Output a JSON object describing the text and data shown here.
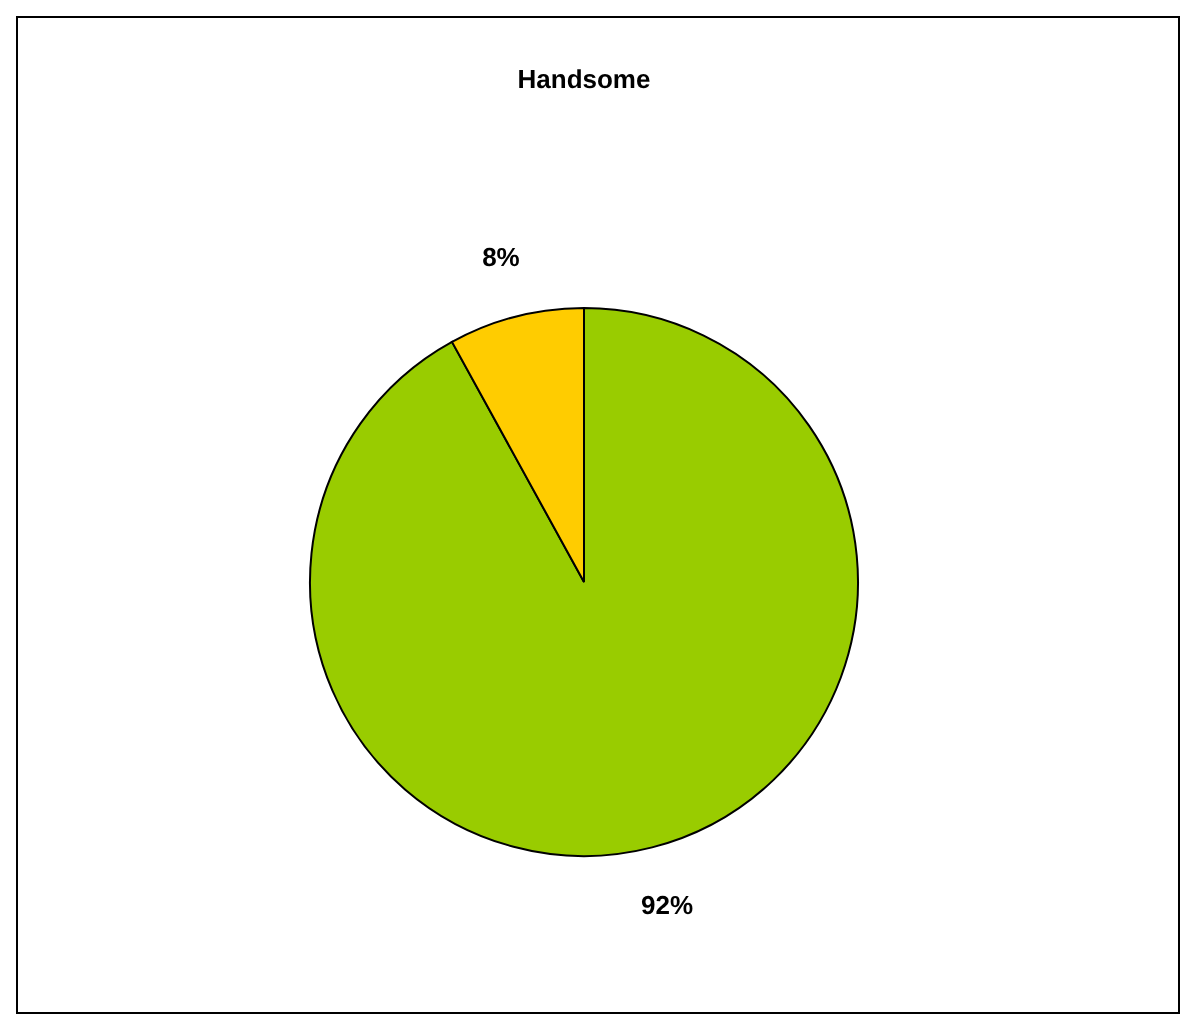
{
  "chart_data": {
    "type": "pie",
    "title": "Handsome",
    "categories": [
      null,
      null
    ],
    "values": [
      92,
      8
    ],
    "colors": [
      "#99cc00",
      "#ffcc00"
    ],
    "value_labels": [
      "92%",
      "8%"
    ]
  }
}
